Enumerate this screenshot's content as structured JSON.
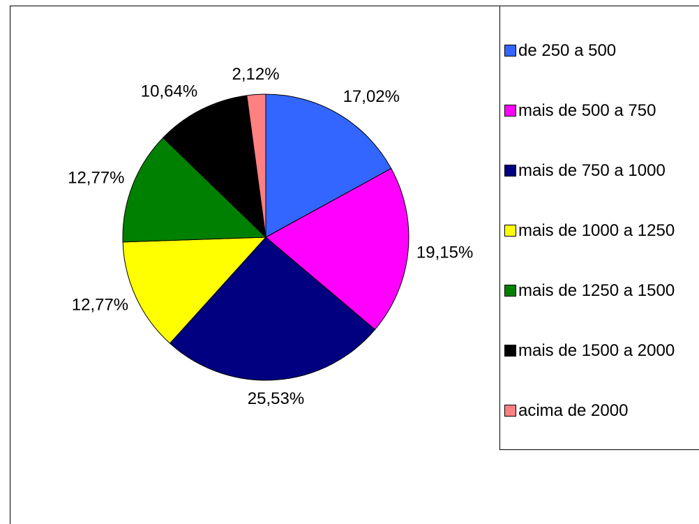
{
  "chart_data": {
    "type": "pie",
    "categories": [
      "de 250 a 500",
      "mais de 500 a 750",
      "mais de 750 a 1000",
      "mais de 1000 a 1250",
      "mais de 1250 a 1500",
      "mais de 1500 a 2000",
      "acima de 2000"
    ],
    "values": [
      17.02,
      19.15,
      25.53,
      12.77,
      12.77,
      10.64,
      2.12
    ],
    "value_labels": [
      "17,02%",
      "19,15%",
      "25,53%",
      "12,77%",
      "12,77%",
      "10,64%",
      "2,12%"
    ],
    "colors": [
      "#3366ff",
      "#ff00ff",
      "#000080",
      "#ffff00",
      "#008000",
      "#000000",
      "#ff8080"
    ],
    "legend": "right"
  }
}
